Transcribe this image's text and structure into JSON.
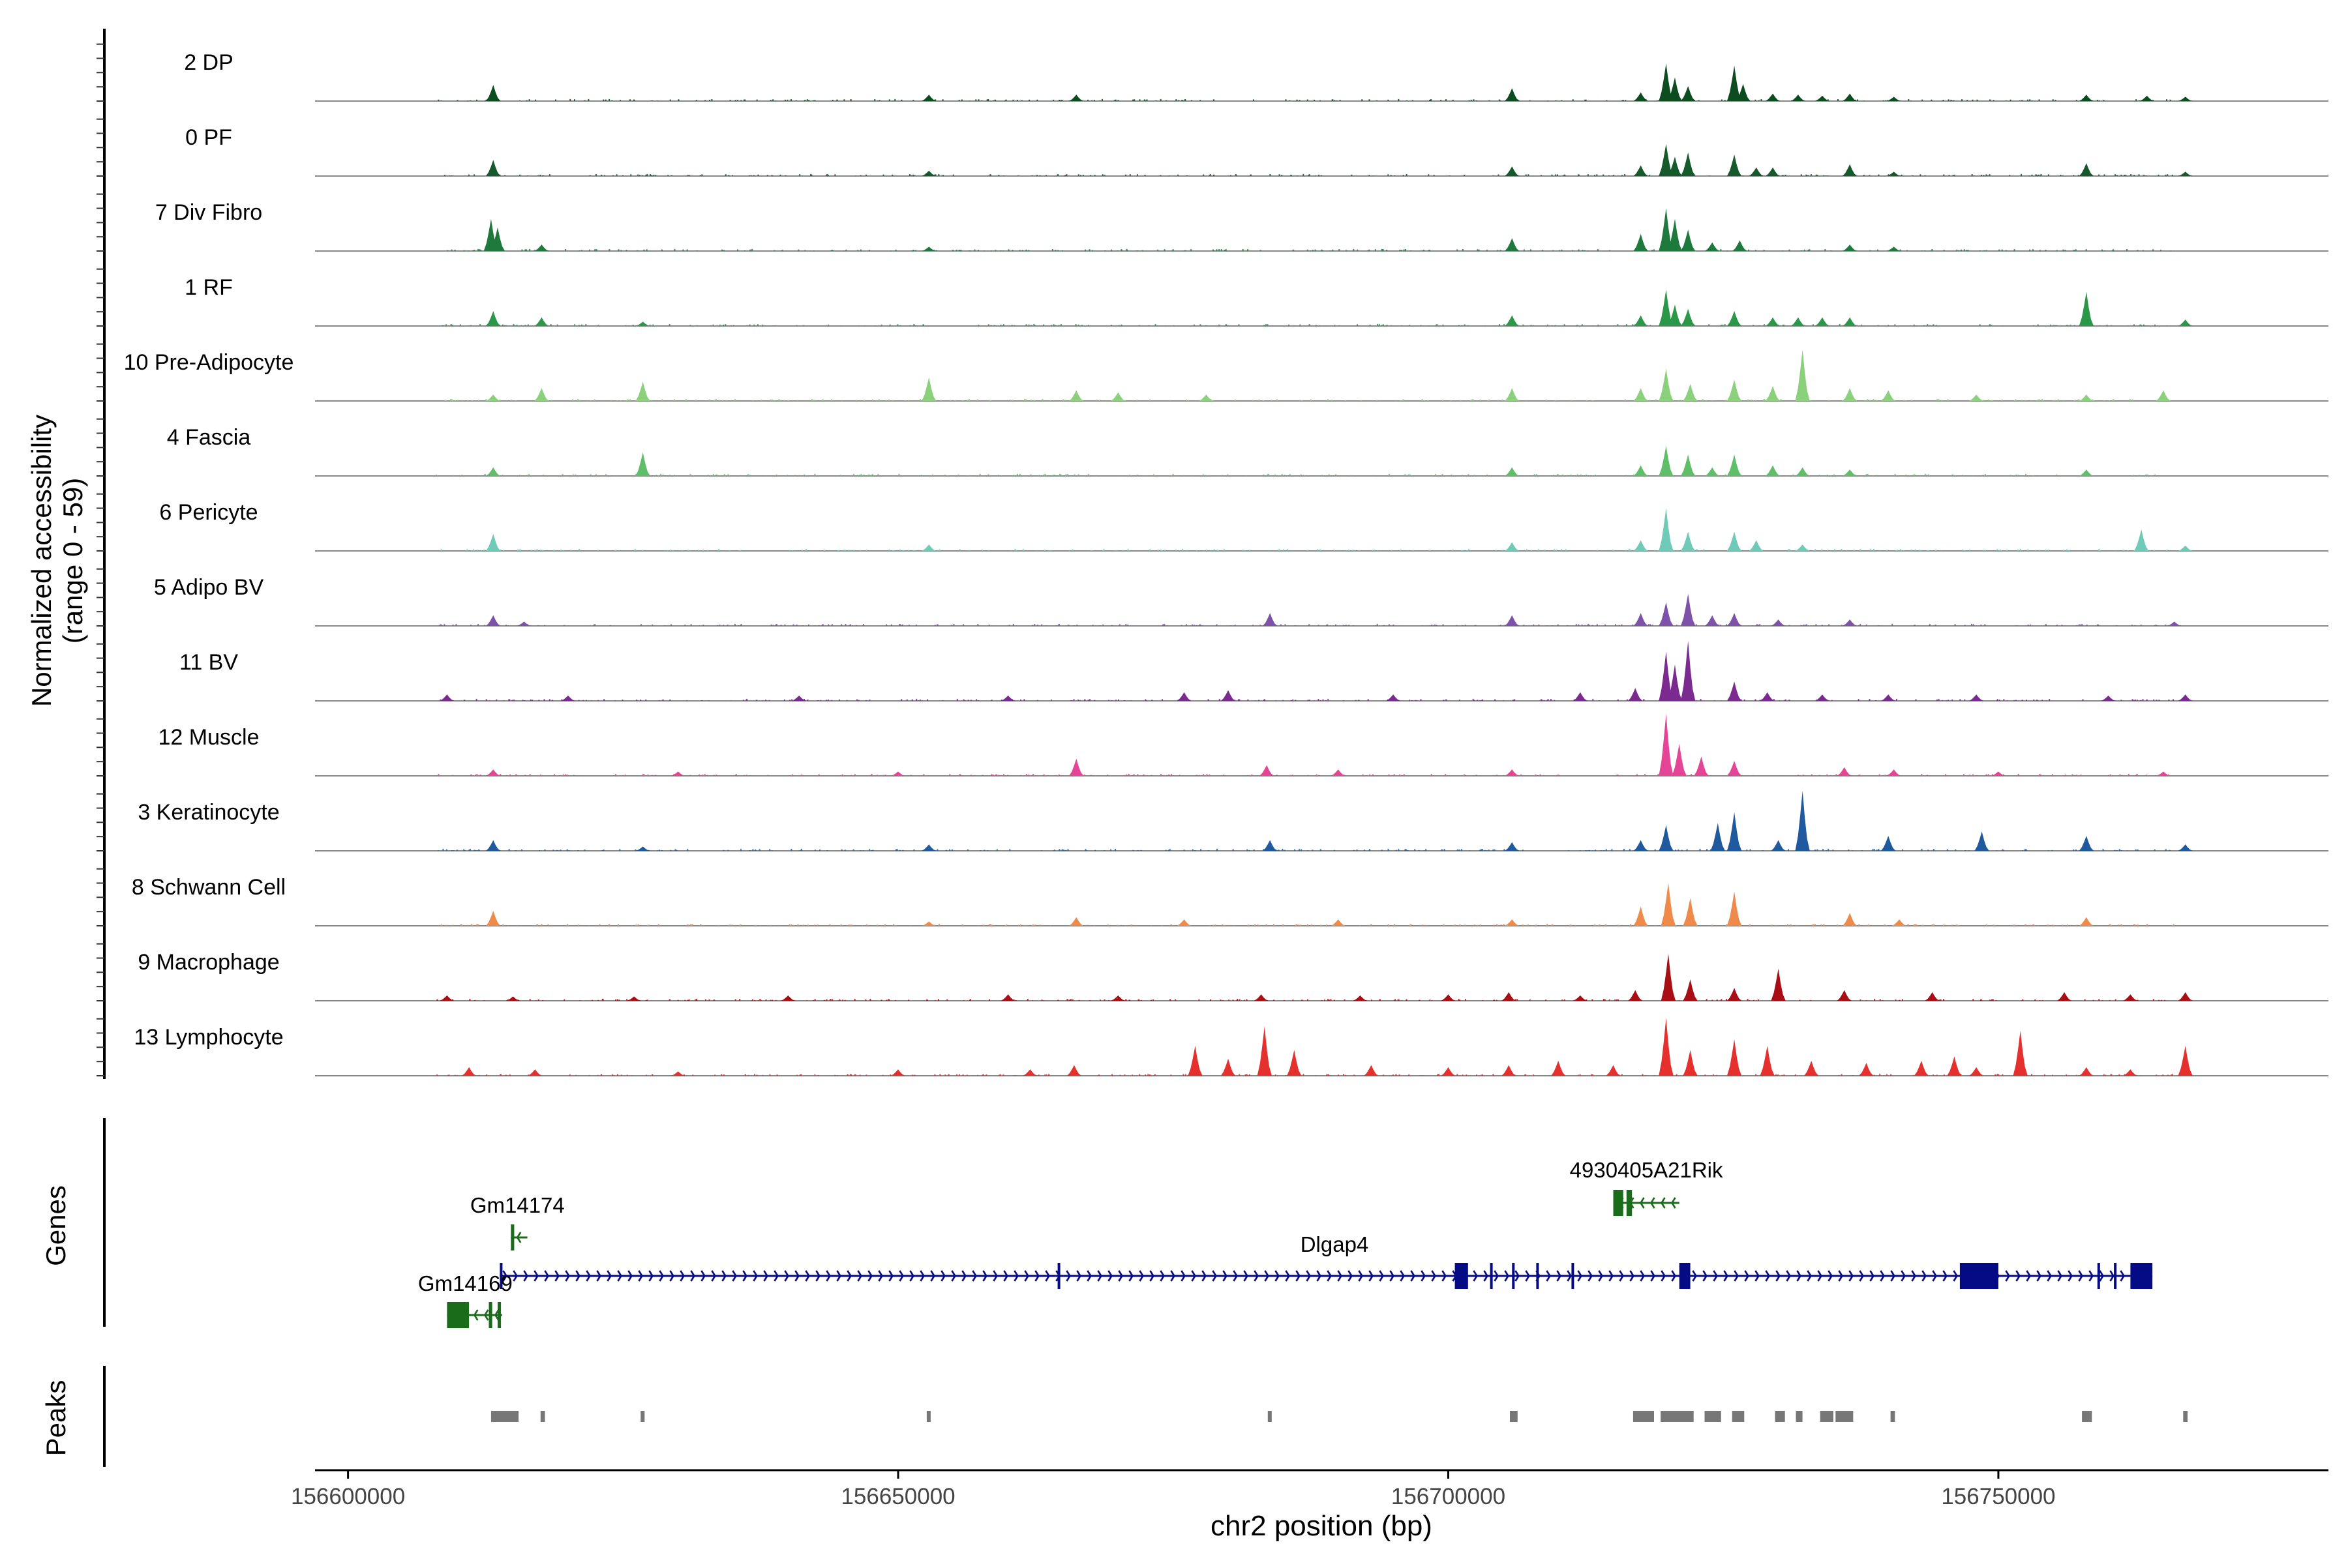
{
  "chart_data": {
    "type": "area",
    "title": "",
    "xlabel": "chr2 position (bp)",
    "ylabel": "Normalized accessibility",
    "ylabel_range": "(range 0 - 59)",
    "ylim": [
      0,
      59
    ],
    "xlim": [
      156597000,
      156780000
    ],
    "x_ticks": [
      156600000,
      156650000,
      156700000,
      156750000
    ],
    "x_tick_labels": [
      "156600000",
      "156650000",
      "156700000",
      "156750000"
    ],
    "genes_label": "Genes",
    "peaks_label": "Peaks",
    "tracks": [
      {
        "name": "2 DP",
        "color": "#0b4d1f",
        "peaks": [
          [
            156613200,
            15
          ],
          [
            156652800,
            6
          ],
          [
            156666200,
            6
          ],
          [
            156705800,
            12
          ],
          [
            156717500,
            8
          ],
          [
            156719800,
            35
          ],
          [
            156720600,
            22
          ],
          [
            156721800,
            14
          ],
          [
            156726000,
            33
          ],
          [
            156726800,
            16
          ],
          [
            156729500,
            7
          ],
          [
            156731800,
            6
          ],
          [
            156734000,
            5
          ],
          [
            156736500,
            7
          ],
          [
            156740500,
            4
          ],
          [
            156758000,
            6
          ],
          [
            156763500,
            5
          ],
          [
            156767000,
            4
          ]
        ]
      },
      {
        "name": "0 PF",
        "color": "#155a2a",
        "peaks": [
          [
            156613200,
            15
          ],
          [
            156652800,
            5
          ],
          [
            156705800,
            9
          ],
          [
            156717500,
            10
          ],
          [
            156719800,
            30
          ],
          [
            156720600,
            18
          ],
          [
            156721800,
            22
          ],
          [
            156726000,
            20
          ],
          [
            156728000,
            8
          ],
          [
            156729500,
            8
          ],
          [
            156736500,
            11
          ],
          [
            156740500,
            4
          ],
          [
            156758000,
            12
          ],
          [
            156767000,
            4
          ]
        ]
      },
      {
        "name": "7 Div Fibro",
        "color": "#1e7a3c",
        "peaks": [
          [
            156613000,
            30
          ],
          [
            156613600,
            22
          ],
          [
            156617600,
            6
          ],
          [
            156652800,
            4
          ],
          [
            156705800,
            12
          ],
          [
            156717500,
            16
          ],
          [
            156719800,
            40
          ],
          [
            156720600,
            30
          ],
          [
            156721800,
            20
          ],
          [
            156724000,
            8
          ],
          [
            156726500,
            10
          ],
          [
            156736500,
            6
          ],
          [
            156740500,
            4
          ]
        ]
      },
      {
        "name": "1 RF",
        "color": "#2a9848",
        "peaks": [
          [
            156613200,
            14
          ],
          [
            156617600,
            8
          ],
          [
            156626800,
            4
          ],
          [
            156705800,
            10
          ],
          [
            156717500,
            10
          ],
          [
            156719800,
            34
          ],
          [
            156720600,
            20
          ],
          [
            156721800,
            16
          ],
          [
            156726000,
            14
          ],
          [
            156729500,
            8
          ],
          [
            156731800,
            8
          ],
          [
            156734000,
            8
          ],
          [
            156736500,
            8
          ],
          [
            156758000,
            32
          ],
          [
            156767000,
            6
          ]
        ]
      },
      {
        "name": "10 Pre-Adipocyte",
        "color": "#8bd17c",
        "peaks": [
          [
            156613200,
            6
          ],
          [
            156617600,
            12
          ],
          [
            156626800,
            18
          ],
          [
            156652800,
            22
          ],
          [
            156666200,
            10
          ],
          [
            156670000,
            8
          ],
          [
            156678000,
            6
          ],
          [
            156705800,
            12
          ],
          [
            156717500,
            12
          ],
          [
            156719800,
            30
          ],
          [
            156722000,
            16
          ],
          [
            156726000,
            20
          ],
          [
            156729500,
            14
          ],
          [
            156732200,
            48
          ],
          [
            156736500,
            12
          ],
          [
            156740000,
            10
          ],
          [
            156748000,
            6
          ],
          [
            156758000,
            6
          ],
          [
            156765000,
            10
          ]
        ]
      },
      {
        "name": "4 Fascia",
        "color": "#5fbf68",
        "peaks": [
          [
            156613200,
            8
          ],
          [
            156626800,
            22
          ],
          [
            156705800,
            8
          ],
          [
            156717500,
            10
          ],
          [
            156719800,
            28
          ],
          [
            156721800,
            20
          ],
          [
            156724000,
            8
          ],
          [
            156726000,
            20
          ],
          [
            156729500,
            10
          ],
          [
            156732200,
            8
          ],
          [
            156736500,
            6
          ],
          [
            156758000,
            6
          ]
        ]
      },
      {
        "name": "6 Pericyte",
        "color": "#6fcab8",
        "peaks": [
          [
            156613200,
            16
          ],
          [
            156652800,
            6
          ],
          [
            156705800,
            8
          ],
          [
            156717500,
            10
          ],
          [
            156719800,
            40
          ],
          [
            156721800,
            18
          ],
          [
            156726000,
            18
          ],
          [
            156728000,
            10
          ],
          [
            156732200,
            6
          ],
          [
            156763000,
            20
          ],
          [
            156767000,
            5
          ]
        ]
      },
      {
        "name": "5 Adipo BV",
        "color": "#7d52a8",
        "peaks": [
          [
            156613200,
            10
          ],
          [
            156616000,
            4
          ],
          [
            156683800,
            12
          ],
          [
            156705800,
            10
          ],
          [
            156717500,
            12
          ],
          [
            156719800,
            22
          ],
          [
            156721800,
            30
          ],
          [
            156724000,
            10
          ],
          [
            156726000,
            12
          ],
          [
            156730000,
            6
          ],
          [
            156736500,
            6
          ],
          [
            156766000,
            4
          ]
        ]
      },
      {
        "name": "11 BV",
        "color": "#7b2b8f",
        "peaks": [
          [
            156609000,
            6
          ],
          [
            156620000,
            5
          ],
          [
            156641000,
            5
          ],
          [
            156660000,
            5
          ],
          [
            156676000,
            8
          ],
          [
            156680000,
            10
          ],
          [
            156695000,
            6
          ],
          [
            156712000,
            8
          ],
          [
            156717000,
            12
          ],
          [
            156719800,
            46
          ],
          [
            156720600,
            34
          ],
          [
            156721800,
            56
          ],
          [
            156726000,
            18
          ],
          [
            156729000,
            8
          ],
          [
            156734000,
            6
          ],
          [
            156740000,
            6
          ],
          [
            156748000,
            6
          ],
          [
            156760000,
            5
          ],
          [
            156767000,
            6
          ]
        ]
      },
      {
        "name": "12 Muscle",
        "color": "#e54596",
        "peaks": [
          [
            156613200,
            6
          ],
          [
            156630000,
            4
          ],
          [
            156650000,
            4
          ],
          [
            156666200,
            16
          ],
          [
            156683500,
            10
          ],
          [
            156690000,
            6
          ],
          [
            156705800,
            6
          ],
          [
            156719800,
            58
          ],
          [
            156721000,
            30
          ],
          [
            156723000,
            18
          ],
          [
            156726000,
            14
          ],
          [
            156736000,
            8
          ],
          [
            156740500,
            6
          ],
          [
            156750000,
            4
          ],
          [
            156765000,
            4
          ]
        ]
      },
      {
        "name": "3 Keratinocyte",
        "color": "#1f5a9e",
        "peaks": [
          [
            156613200,
            10
          ],
          [
            156626800,
            4
          ],
          [
            156652800,
            6
          ],
          [
            156683800,
            10
          ],
          [
            156705800,
            8
          ],
          [
            156717500,
            10
          ],
          [
            156719800,
            24
          ],
          [
            156724500,
            26
          ],
          [
            156726000,
            36
          ],
          [
            156730000,
            10
          ],
          [
            156732200,
            56
          ],
          [
            156740000,
            14
          ],
          [
            156748500,
            18
          ],
          [
            156758000,
            14
          ],
          [
            156767000,
            6
          ]
        ]
      },
      {
        "name": "8 Schwann Cell",
        "color": "#ef8a4b",
        "peaks": [
          [
            156613200,
            14
          ],
          [
            156652800,
            4
          ],
          [
            156666200,
            8
          ],
          [
            156676000,
            6
          ],
          [
            156690000,
            6
          ],
          [
            156705800,
            6
          ],
          [
            156717500,
            18
          ],
          [
            156720000,
            40
          ],
          [
            156722000,
            26
          ],
          [
            156726000,
            32
          ],
          [
            156736500,
            12
          ],
          [
            156741000,
            6
          ],
          [
            156758000,
            8
          ]
        ]
      },
      {
        "name": "9 Macrophage",
        "color": "#a80e14",
        "peaks": [
          [
            156609000,
            5
          ],
          [
            156615000,
            4
          ],
          [
            156626000,
            4
          ],
          [
            156640000,
            5
          ],
          [
            156660000,
            6
          ],
          [
            156670000,
            5
          ],
          [
            156683000,
            6
          ],
          [
            156692000,
            5
          ],
          [
            156700000,
            6
          ],
          [
            156705500,
            8
          ],
          [
            156712000,
            5
          ],
          [
            156717000,
            10
          ],
          [
            156720000,
            44
          ],
          [
            156722000,
            20
          ],
          [
            156726000,
            12
          ],
          [
            156730000,
            30
          ],
          [
            156736000,
            10
          ],
          [
            156744000,
            8
          ],
          [
            156756000,
            8
          ],
          [
            156762000,
            6
          ],
          [
            156767000,
            8
          ]
        ]
      },
      {
        "name": "13 Lymphocyte",
        "color": "#e5302d",
        "peaks": [
          [
            156611000,
            8
          ],
          [
            156617000,
            6
          ],
          [
            156630000,
            4
          ],
          [
            156650000,
            6
          ],
          [
            156662000,
            6
          ],
          [
            156666000,
            10
          ],
          [
            156677000,
            28
          ],
          [
            156680000,
            16
          ],
          [
            156683300,
            46
          ],
          [
            156686000,
            24
          ],
          [
            156693000,
            10
          ],
          [
            156700000,
            8
          ],
          [
            156705500,
            10
          ],
          [
            156710000,
            14
          ],
          [
            156715000,
            10
          ],
          [
            156719800,
            54
          ],
          [
            156722000,
            24
          ],
          [
            156726000,
            34
          ],
          [
            156729000,
            28
          ],
          [
            156733000,
            14
          ],
          [
            156738000,
            12
          ],
          [
            156743000,
            14
          ],
          [
            156746000,
            18
          ],
          [
            156748000,
            8
          ],
          [
            156752000,
            42
          ],
          [
            156758000,
            8
          ],
          [
            156762000,
            6
          ],
          [
            156767000,
            28
          ]
        ]
      }
    ],
    "genes": [
      {
        "name": "4930405A21Rik",
        "strand": "-",
        "start": 156715000,
        "end": 156721000,
        "color": "#1a6b1a",
        "row": 0,
        "exons": [
          [
            156715000,
            156715900
          ],
          [
            156716200,
            156716700
          ]
        ]
      },
      {
        "name": "Gm14174",
        "strand": "-",
        "start": 156614800,
        "end": 156616300,
        "color": "#1a6b1a",
        "row": 1,
        "exons": [
          [
            156614800,
            156615100
          ]
        ]
      },
      {
        "name": "Dlgap4",
        "strand": "+",
        "start": 156613800,
        "end": 156764000,
        "color": "#050a85",
        "row": 2,
        "exons": [
          [
            156613800,
            156614000
          ],
          [
            156664500,
            156664700
          ],
          [
            156700600,
            156701800
          ],
          [
            156703800,
            156704000
          ],
          [
            156705800,
            156706000
          ],
          [
            156708000,
            156708200
          ],
          [
            156711200,
            156711400
          ],
          [
            156721000,
            156722000
          ],
          [
            156746500,
            156750000
          ],
          [
            156759000,
            156759200
          ],
          [
            156760500,
            156760700
          ],
          [
            156762000,
            156764000
          ]
        ]
      },
      {
        "name": "Gm14169",
        "strand": "-",
        "start": 156609000,
        "end": 156614000,
        "color": "#1a6b1a",
        "row": 3,
        "exons": [
          [
            156609000,
            156611000
          ],
          [
            156612800,
            156613100
          ],
          [
            156613600,
            156613900
          ]
        ]
      }
    ],
    "peak_regions": [
      [
        156613000,
        156615500
      ],
      [
        156617500,
        156617900
      ],
      [
        156626600,
        156626900
      ],
      [
        156652600,
        156652900
      ],
      [
        156683600,
        156683900
      ],
      [
        156705600,
        156706300
      ],
      [
        156716800,
        156718700
      ],
      [
        156719300,
        156722300
      ],
      [
        156723300,
        156724800
      ],
      [
        156725800,
        156726900
      ],
      [
        156729700,
        156730600
      ],
      [
        156731600,
        156732200
      ],
      [
        156733800,
        156735000
      ],
      [
        156735200,
        156736800
      ],
      [
        156740200,
        156740600
      ],
      [
        156757600,
        156758500
      ],
      [
        156766800,
        156767200
      ]
    ]
  }
}
